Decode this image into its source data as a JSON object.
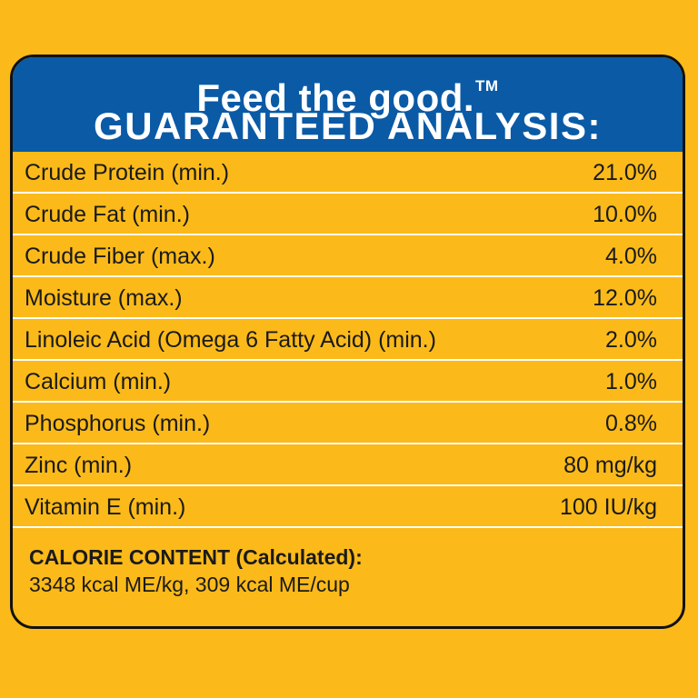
{
  "header": {
    "tagline": "Feed the good.",
    "trademark": "TM",
    "title": "GUARANTEED ANALYSIS:"
  },
  "analysis": [
    {
      "label": "Crude Protein (min.)",
      "value": "21.0%"
    },
    {
      "label": "Crude Fat (min.)",
      "value": "10.0%"
    },
    {
      "label": "Crude Fiber (max.)",
      "value": "4.0%"
    },
    {
      "label": "Moisture (max.)",
      "value": "12.0%"
    },
    {
      "label": "Linoleic Acid (Omega 6 Fatty Acid) (min.)",
      "value": "2.0%"
    },
    {
      "label": "Calcium (min.)",
      "value": "1.0%"
    },
    {
      "label": "Phosphorus (min.)",
      "value": "0.8%"
    },
    {
      "label": "Zinc (min.)",
      "value": "80 mg/kg"
    },
    {
      "label": "Vitamin E (min.)",
      "value": "100 IU/kg"
    }
  ],
  "calorie": {
    "title": "CALORIE CONTENT (Calculated):",
    "value": "3348 kcal ME/kg, 309 kcal ME/cup"
  },
  "colors": {
    "background": "#fbba19",
    "header": "#0a5aa6",
    "border": "#111111"
  }
}
